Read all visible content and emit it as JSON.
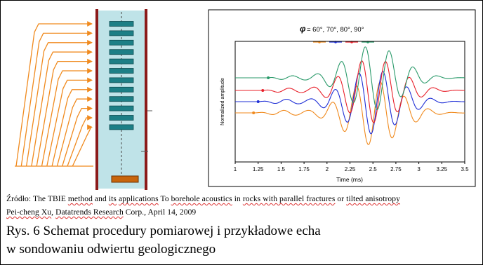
{
  "figure": {
    "borehole": {
      "colors": {
        "borehole_fill": "#bfe3e8",
        "wall": "#8b1a1a",
        "rays": "#f08a1e",
        "receiver": "#1d7f86",
        "source": "#c8650c"
      },
      "receiver_count": 12,
      "ray_count": 12
    },
    "chart_data": {
      "type": "line",
      "title": "= 60°,  70°,  80°,  90°",
      "title_symbol": "φ",
      "xlabel": "Time (ms)",
      "ylabel": "Normalized amplitude",
      "x_ticks": [
        "1",
        "1.25",
        "1.5",
        "1.75",
        "2",
        "2.25",
        "2.5",
        "2.75",
        "3",
        "3.25",
        "3.5"
      ],
      "xlim": [
        1,
        3.5
      ],
      "grid": false,
      "legend_placement": "top-center",
      "series": [
        {
          "color": "#f08a1e",
          "baseline": 0,
          "onset_x": 1.2
        },
        {
          "color": "#1f2fd6",
          "baseline": 1,
          "onset_x": 1.25
        },
        {
          "color": "#e8202a",
          "baseline": 2,
          "onset_x": 1.3
        },
        {
          "color": "#2a9a6a",
          "baseline": 3,
          "onset_x": 1.36
        }
      ]
    }
  },
  "source": {
    "line1": [
      {
        "t": "Źródło: The TBIE ",
        "u": false
      },
      {
        "t": "method",
        "u": true
      },
      {
        "t": " and ",
        "u": false
      },
      {
        "t": "its",
        "u": true
      },
      {
        "t": " ",
        "u": false
      },
      {
        "t": "applications",
        "u": true
      },
      {
        "t": " To ",
        "u": false
      },
      {
        "t": "borehole acoustics",
        "u": true
      },
      {
        "t": " in ",
        "u": false
      },
      {
        "t": "rocks with parallel fractures",
        "u": true
      },
      {
        "t": " or ",
        "u": false
      },
      {
        "t": "tilted anisotropy",
        "u": true
      }
    ],
    "line2": [
      {
        "t": "Pei-cheng Xu",
        "u": true
      },
      {
        "t": ", ",
        "u": false
      },
      {
        "t": "Datatrends Research",
        "u": true
      },
      {
        "t": " Corp., April 14, 2009",
        "u": false
      }
    ]
  },
  "caption": {
    "line1": "Rys. 6 Schemat procedury pomiarowej i przykładowe echa",
    "line2": "w sondowaniu odwiertu  geologicznego"
  }
}
